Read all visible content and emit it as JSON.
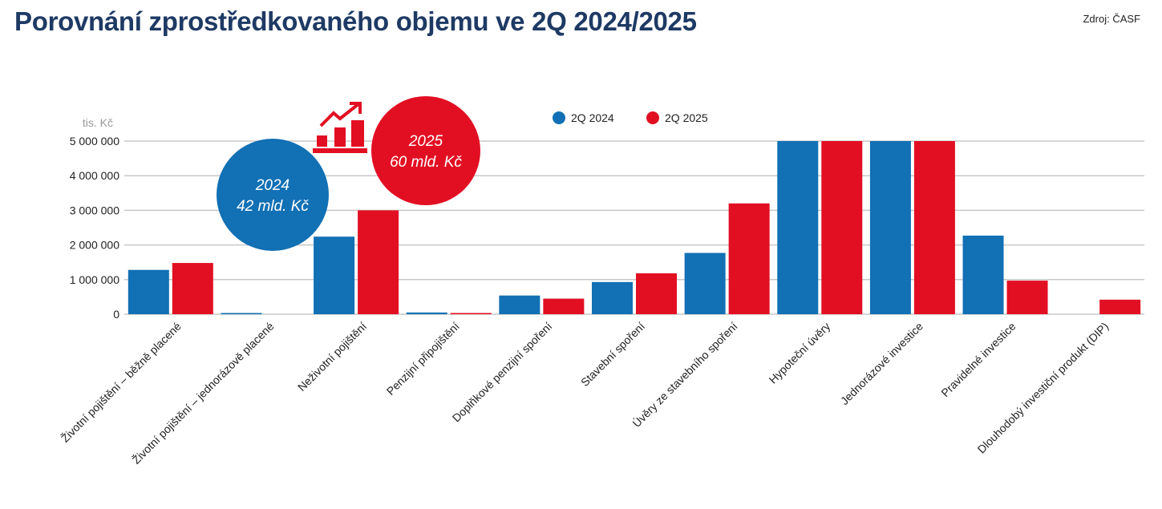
{
  "title": "Porovnání zprostředkovaného objemu ve 2Q 2024/2025",
  "source": "Zdroj: ČASF",
  "colors": {
    "series_2024": "#1270b4",
    "series_2025": "#e20f23",
    "title": "#1e3a64"
  },
  "bubbles": [
    {
      "year": "2024",
      "amount": "42 mld. Kč",
      "color": "#1270b4"
    },
    {
      "year": "2025",
      "amount": "60 mld. Kč",
      "color": "#e20f23"
    }
  ],
  "icon": "growth-chart-icon",
  "chart_data": {
    "type": "bar",
    "ylabel": "tis. Kč",
    "ylim": [
      0,
      5000000
    ],
    "yticks": [
      "0",
      "1 000 000",
      "2 000 000",
      "3 000 000",
      "4 000 000",
      "5 000 000"
    ],
    "ytick_values": [
      0,
      1000000,
      2000000,
      3000000,
      4000000,
      5000000
    ],
    "grid": true,
    "legend": "top-center",
    "categories": [
      "Životní pojištění – běžně placené",
      "Životní pojištění – jednorázově placené",
      "Neživotní pojištění",
      "Penzijní připojištění",
      "Doplňkové penzijní spoření",
      "Stavební spoření",
      "Úvěry ze stavebního spoření",
      "Hypoteční úvěry",
      "Jednorázové investice",
      "Pravidelné investice",
      "Dlouhodobý investiční produkt (DIP)"
    ],
    "series": [
      {
        "name": "2Q 2024",
        "color": "#1270b4",
        "values": [
          1280000,
          30000,
          2240000,
          50000,
          540000,
          930000,
          1770000,
          5000000,
          5000000,
          2270000,
          0
        ]
      },
      {
        "name": "2Q 2025",
        "color": "#e20f23",
        "values": [
          1480000,
          0,
          3000000,
          20000,
          450000,
          1180000,
          3200000,
          5000000,
          5000000,
          970000,
          420000
        ]
      }
    ]
  }
}
